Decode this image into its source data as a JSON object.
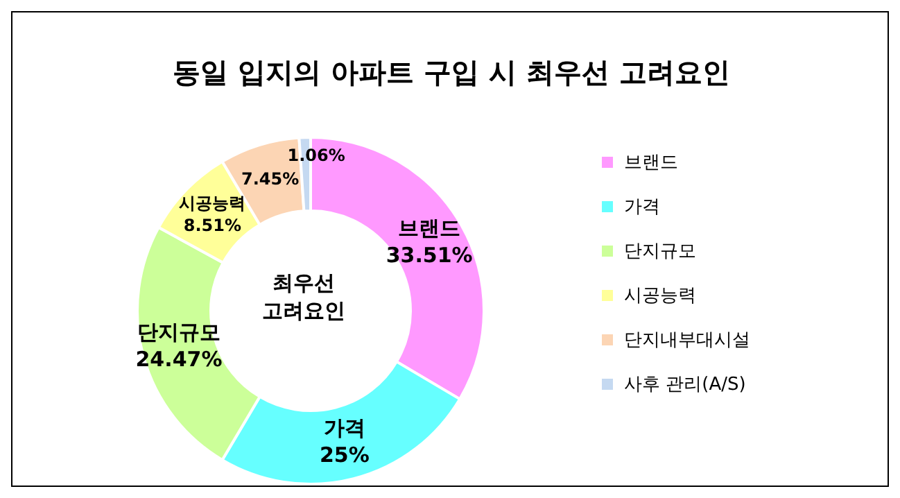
{
  "chart_data": {
    "type": "donut",
    "title": "동일 입지의 아파트 구입 시 최우선 고려요인",
    "categories": [
      "브랜드",
      "가격",
      "단지규모",
      "시공능력",
      "단지내부대시설",
      "사후 관리(A/S)"
    ],
    "values": [
      33.51,
      25,
      24.47,
      8.51,
      7.45,
      1.06
    ],
    "colors": [
      "#ff99ff",
      "#66ffff",
      "#ccff99",
      "#ffff99",
      "#fcd5b4",
      "#c5d9f1"
    ],
    "value_labels": [
      "브랜드\n33.51%",
      "가격\n25%",
      "단지규모\n24.47%",
      "시공능력\n8.51%",
      "7.45%",
      "1.06%"
    ],
    "annotations": [
      "최우선\n고려요인"
    ],
    "legend": "right"
  }
}
